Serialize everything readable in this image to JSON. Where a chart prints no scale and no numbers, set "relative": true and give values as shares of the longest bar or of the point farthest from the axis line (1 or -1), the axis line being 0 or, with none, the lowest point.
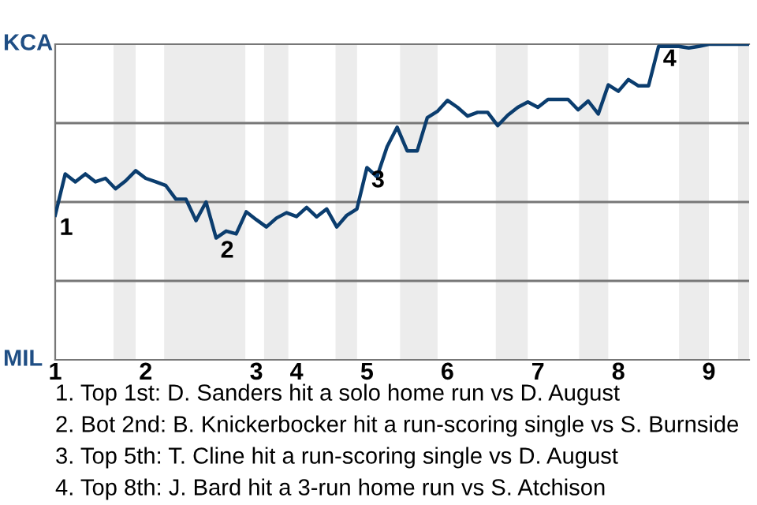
{
  "chart_data": {
    "type": "line",
    "relative": true,
    "categories": [
      "1",
      null,
      null,
      null,
      null,
      null,
      null,
      null,
      null,
      "2",
      null,
      null,
      null,
      null,
      null,
      null,
      null,
      null,
      null,
      null,
      "3",
      null,
      null,
      null,
      "4",
      null,
      null,
      null,
      null,
      null,
      null,
      "5",
      null,
      null,
      null,
      null,
      null,
      null,
      null,
      "6",
      null,
      null,
      null,
      null,
      null,
      null,
      null,
      null,
      "7",
      null,
      null,
      null,
      null,
      null,
      null,
      null,
      "8",
      null,
      null,
      null,
      null,
      null,
      null,
      null,
      null,
      "9",
      null,
      null,
      null,
      null
    ],
    "series": [
      {
        "color": "#0b3d6e",
        "values": [
          0.458,
          0.589,
          0.564,
          0.589,
          0.564,
          0.575,
          0.542,
          0.567,
          0.599,
          0.575,
          0.564,
          0.552,
          0.509,
          0.509,
          0.441,
          0.5,
          0.386,
          0.408,
          0.399,
          0.469,
          0.444,
          0.421,
          0.449,
          0.466,
          0.454,
          0.483,
          0.453,
          0.478,
          0.421,
          0.458,
          0.478,
          0.609,
          0.58,
          0.675,
          0.737,
          0.662,
          0.662,
          0.767,
          0.787,
          0.822,
          0.8,
          0.772,
          0.784,
          0.784,
          0.742,
          0.775,
          0.8,
          0.817,
          0.8,
          0.825,
          0.825,
          0.825,
          0.792,
          0.82,
          0.779,
          0.871,
          0.851,
          0.888,
          0.868,
          0.868,
          0.993,
          0.993,
          0.993,
          0.988,
          0.993,
          1,
          1,
          1,
          1,
          1
        ],
        "name": null
      }
    ],
    "grid": "y",
    "marker": "none",
    "line_style": "solid",
    "legend": false,
    "annotations": [
      "KCA",
      "MIL",
      {
        "text": "1",
        "x": "1",
        "y": 0.458
      },
      {
        "text": "2",
        "y": 0.386
      },
      {
        "text": "3",
        "y": 0.609
      },
      {
        "text": "4",
        "y": 0.993
      },
      "1. Top 1st: D. Sanders hit a solo home run vs D. August",
      "2. Bot 2nd: B. Knickerbocker hit a run-scoring single vs S. Burnside",
      "3. Top 5th: T. Cline hit a run-scoring single vs D. August",
      "4. Top 8th: J. Bard hit a 3-run home run vs S. Atchison"
    ]
  }
}
